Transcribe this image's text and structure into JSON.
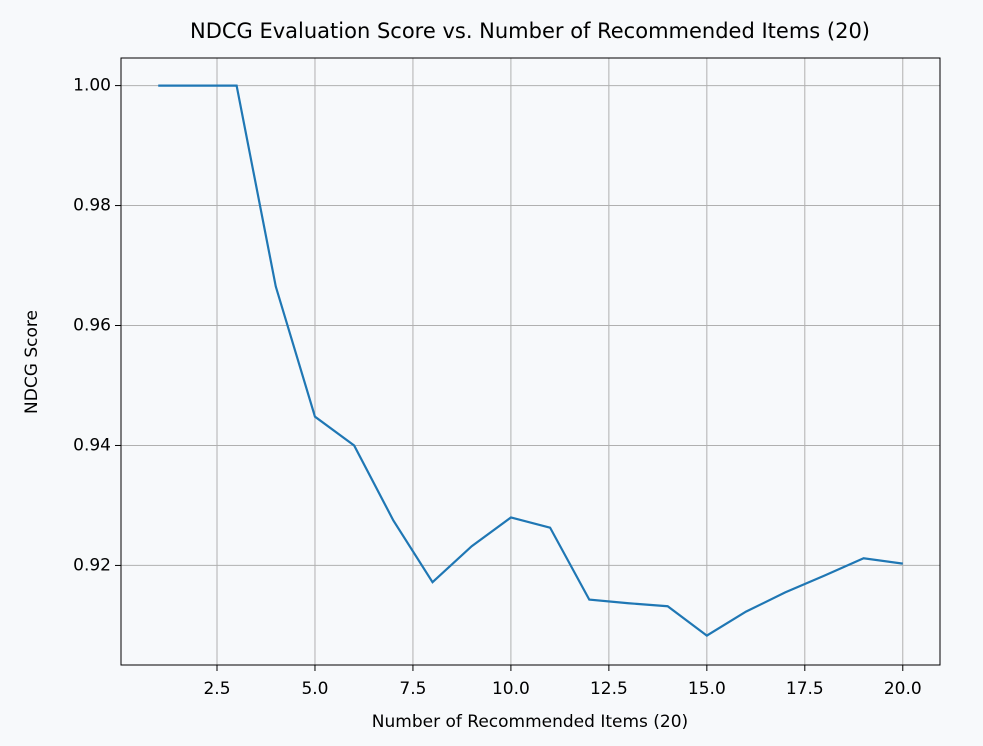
{
  "chart_data": {
    "type": "line",
    "title": "NDCG Evaluation Score vs. Number of Recommended Items (20)",
    "x_label": "Number of Recommended Items (20)",
    "y_label": "NDCG Score",
    "x": [
      1,
      2,
      3,
      4,
      5,
      6,
      7,
      8,
      9,
      10,
      11,
      12,
      13,
      14,
      15,
      16,
      17,
      18,
      19,
      20
    ],
    "series": [
      {
        "name": "NDCG",
        "color": "#1f77b4",
        "values": [
          1.0,
          1.0,
          1.0,
          0.9665,
          0.9448,
          0.94,
          0.9275,
          0.9172,
          0.9232,
          0.928,
          0.9263,
          0.9143,
          0.9137,
          0.9132,
          0.9083,
          0.9123,
          0.9155,
          0.9183,
          0.9212,
          0.9203
        ]
      }
    ],
    "xlim": [
      0.05,
      20.95
    ],
    "ylim": [
      0.9034,
      1.0046
    ],
    "xticks": [
      2.5,
      {
        "value": 5,
        "label": "5.0"
      },
      7.5,
      {
        "value": 10,
        "label": "10.0"
      },
      12.5,
      {
        "value": 15,
        "label": "15.0"
      },
      17.5,
      {
        "value": 20,
        "label": "20.0"
      }
    ],
    "yticks": [
      0.92,
      0.94,
      0.96,
      0.98,
      {
        "value": 1,
        "label": "1.00"
      }
    ],
    "grid": true
  }
}
